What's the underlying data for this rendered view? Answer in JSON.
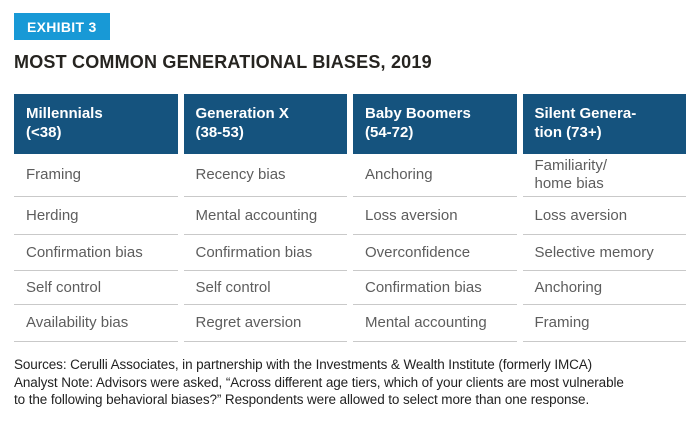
{
  "exhibit_badge": {
    "label": "EXHIBIT 3"
  },
  "title": "MOST COMMON GENERATIONAL BIASES, 2019",
  "table": {
    "columns": [
      {
        "header": "Millennials\n(<38)"
      },
      {
        "header": "Generation X\n(38-53)"
      },
      {
        "header": "Baby Boomers\n(54-72)"
      },
      {
        "header": "Silent Genera-\ntion (73+)"
      }
    ],
    "rows": [
      [
        "Framing",
        "Recency bias",
        "Anchoring",
        "Familiarity/\nhome bias"
      ],
      [
        "Herding",
        "Mental accounting",
        "Loss aversion",
        "Loss aversion"
      ],
      [
        "Confirmation bias",
        "Confirmation bias",
        "Overconfidence",
        "Selective memory"
      ],
      [
        "Self control",
        "Self control",
        "Confirmation bias",
        "Anchoring"
      ],
      [
        "Availability bias",
        "Regret aversion",
        "Mental accounting",
        "Framing"
      ]
    ]
  },
  "footnote": {
    "sources": "Sources: Cerulli Associates, in partnership with the Investments & Wealth Institute (formerly IMCA)",
    "analyst_note": "Analyst Note: Advisors were asked, “Across different age tiers, which of your clients are most vulnerable\nto the following behavioral biases?” Respondents were allowed to select more than one response."
  },
  "colors": {
    "badge_bg": "#1899d6",
    "header_bg": "#15537e",
    "header_text": "#ffffff",
    "body_text": "#5d5d5d",
    "divider": "#c9c9c9",
    "title_text": "#262420",
    "footnote_text": "#222222"
  }
}
